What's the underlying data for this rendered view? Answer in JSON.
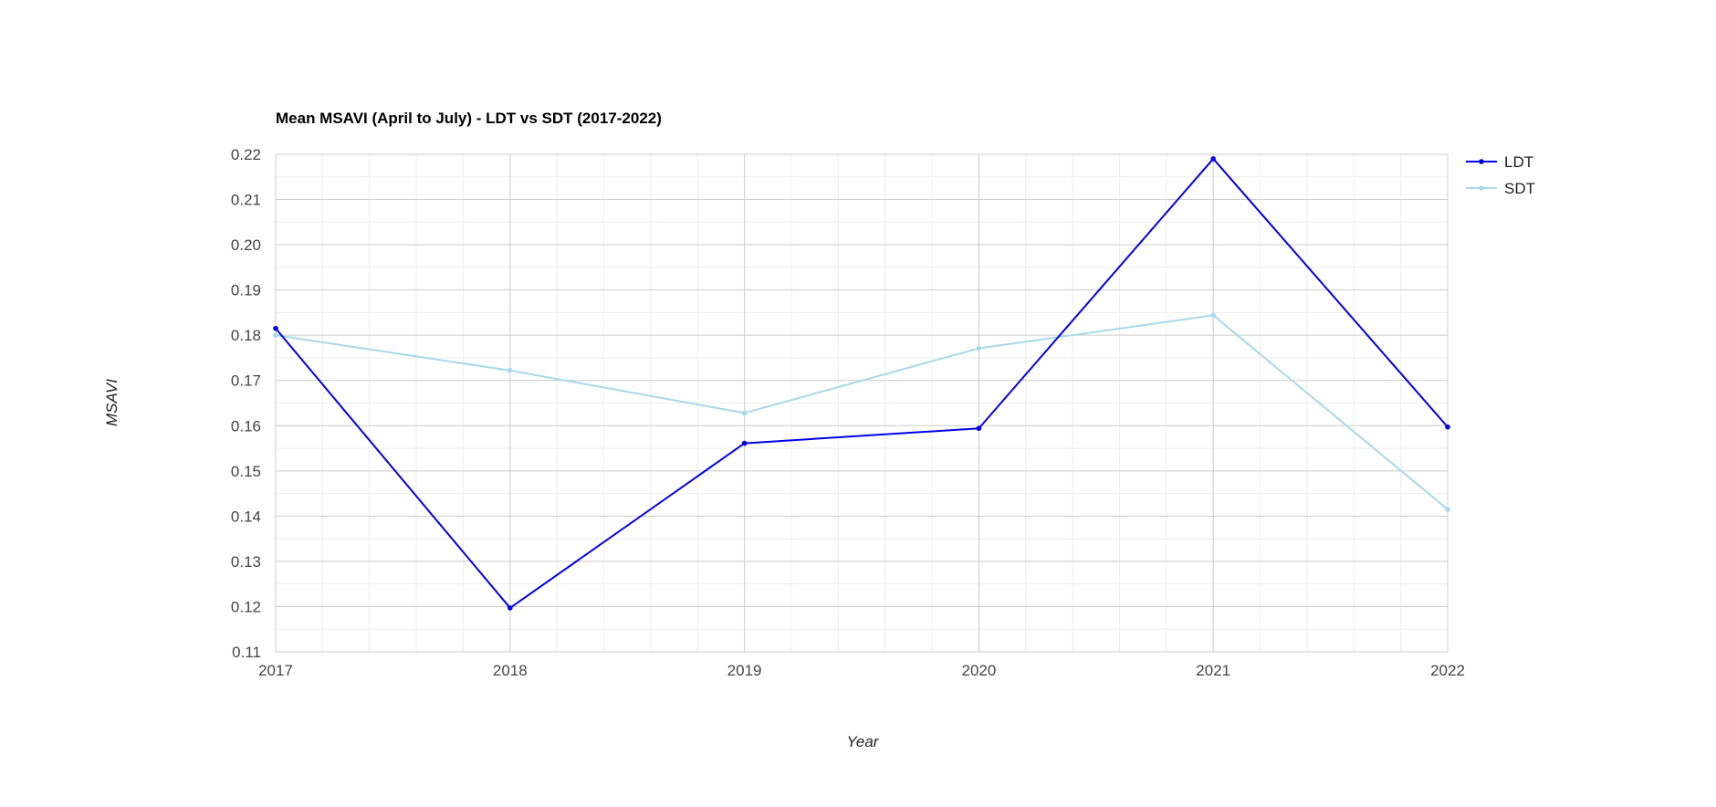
{
  "chart_data": {
    "type": "line",
    "title": "Mean MSAVI (April to July) - LDT vs SDT (2017-2022)",
    "xlabel": "Year",
    "ylabel": "MSAVI",
    "x": [
      2017,
      2018,
      2019,
      2020,
      2021,
      2022
    ],
    "x_tick_labels": [
      "2017",
      "2018",
      "2019",
      "2020",
      "2021",
      "2022"
    ],
    "ylim": [
      0.11,
      0.22
    ],
    "y_ticks": [
      0.11,
      0.12,
      0.13,
      0.14,
      0.15,
      0.16,
      0.17,
      0.18,
      0.19,
      0.2,
      0.21,
      0.22
    ],
    "y_tick_labels": [
      "0.11",
      "0.12",
      "0.13",
      "0.14",
      "0.15",
      "0.16",
      "0.17",
      "0.18",
      "0.19",
      "0.20",
      "0.21",
      "0.22"
    ],
    "grid": true,
    "legend_position": "right",
    "series": [
      {
        "name": "LDT",
        "color": "#0000ee",
        "values": [
          0.1815,
          0.1197,
          0.1561,
          0.1594,
          0.219,
          0.1597
        ]
      },
      {
        "name": "SDT",
        "color": "#a8d8ea",
        "values": [
          0.18,
          0.1722,
          0.1628,
          0.1771,
          0.1844,
          0.1415
        ]
      }
    ]
  }
}
